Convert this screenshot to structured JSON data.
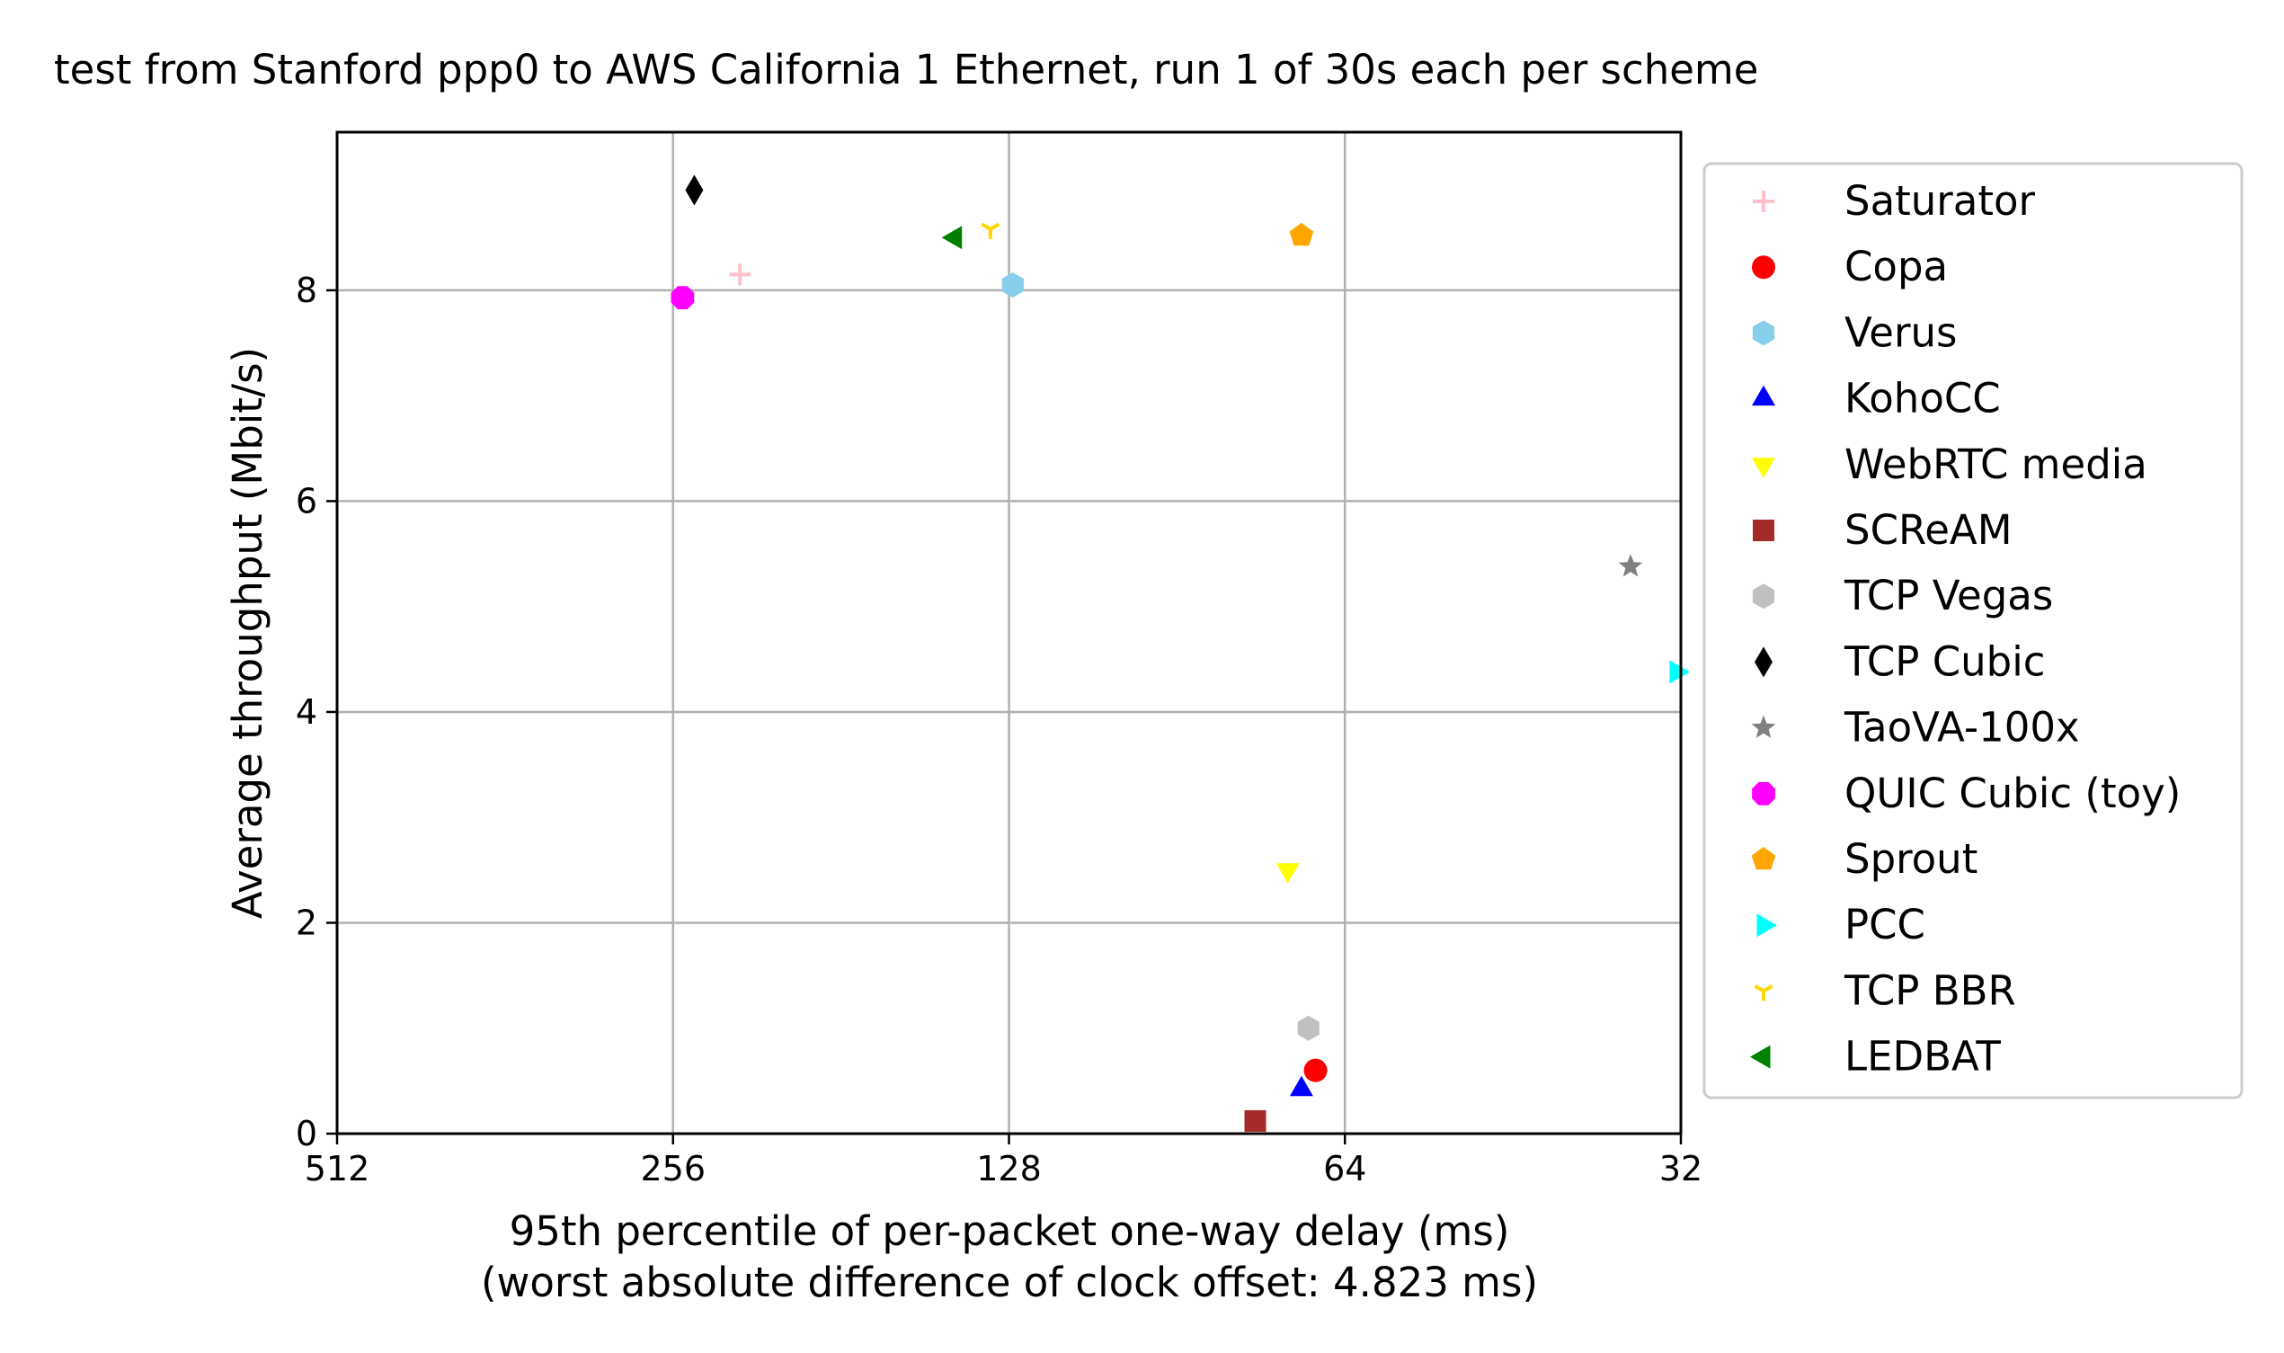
{
  "chart_data": {
    "type": "scatter",
    "title": "test from Stanford ppp0 to AWS California 1 Ethernet, run 1 of 30s each per scheme",
    "xlabel": "95th percentile of per-packet one-way delay (ms)",
    "xlabel2": "(worst absolute difference of clock offset: 4.823 ms)",
    "ylabel": "Average throughput (Mbit/s)",
    "x_scale": "log2",
    "x_inverted": true,
    "xlim": [
      512,
      32
    ],
    "ylim": [
      0,
      9.5
    ],
    "xticks": [
      512,
      256,
      128,
      64,
      32
    ],
    "xtick_labels": [
      "512",
      "256",
      "128",
      "64",
      "32"
    ],
    "yticks": [
      0,
      2,
      4,
      6,
      8
    ],
    "ytick_labels": [
      "0",
      "2",
      "4",
      "6",
      "8"
    ],
    "grid": true,
    "legend_position": "outside-right",
    "series": [
      {
        "name": "Saturator",
        "marker": "plus",
        "color": "#ffc0cb",
        "x": 223,
        "y": 8.15
      },
      {
        "name": "Copa",
        "marker": "circle",
        "color": "#ff0000",
        "x": 68,
        "y": 0.6
      },
      {
        "name": "Verus",
        "marker": "hexagon",
        "color": "#87ceeb",
        "x": 127,
        "y": 8.05
      },
      {
        "name": "KohoCC",
        "marker": "triangle-up",
        "color": "#0000ff",
        "x": 70,
        "y": 0.42
      },
      {
        "name": "WebRTC media",
        "marker": "triangle-down",
        "color": "#ffff00",
        "x": 72,
        "y": 2.5
      },
      {
        "name": "SCReAM",
        "marker": "square",
        "color": "#a52a2a",
        "x": 77,
        "y": 0.12
      },
      {
        "name": "TCP Vegas",
        "marker": "hexagon",
        "color": "#c0c0c0",
        "x": 69,
        "y": 1.0
      },
      {
        "name": "TCP Cubic",
        "marker": "diamond",
        "color": "#000000",
        "x": 245,
        "y": 8.95
      },
      {
        "name": "TaoVA-100x",
        "marker": "star",
        "color": "#808080",
        "x": 35.5,
        "y": 5.38
      },
      {
        "name": "QUIC Cubic (toy)",
        "marker": "octagon",
        "color": "#ff00ff",
        "x": 251,
        "y": 7.93
      },
      {
        "name": "Sprout",
        "marker": "pentagon",
        "color": "#ffa500",
        "x": 70,
        "y": 8.52
      },
      {
        "name": "PCC",
        "marker": "triangle-right",
        "color": "#00ffff",
        "x": 32.3,
        "y": 4.38
      },
      {
        "name": "TCP BBR",
        "marker": "tri-down",
        "color": "#ffd700",
        "x": 133,
        "y": 8.58
      },
      {
        "name": "LEDBAT",
        "marker": "triangle-left",
        "color": "#008000",
        "x": 143,
        "y": 8.5
      }
    ]
  }
}
